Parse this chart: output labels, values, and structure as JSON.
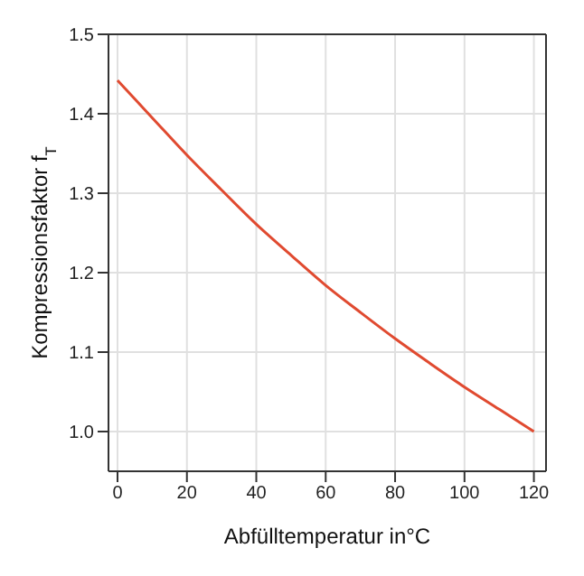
{
  "chart_data": {
    "type": "line",
    "xlabel": "Abfülltemperatur in°C",
    "ylabel": "Kompressionsfaktor f$_{T}$",
    "x": [
      0,
      10,
      20,
      30,
      40,
      50,
      60,
      70,
      80,
      90,
      100,
      110,
      120
    ],
    "series": [
      {
        "color": "#e04a30",
        "values": [
          1.442,
          1.395,
          1.348,
          1.304,
          1.261,
          1.222,
          1.184,
          1.15,
          1.117,
          1.086,
          1.056,
          1.028,
          1.0
        ]
      }
    ],
    "xlim": [
      -2.6,
      123.5
    ],
    "xticks": [
      0,
      20,
      40,
      60,
      80,
      100,
      120
    ],
    "ylim": [
      0.95,
      1.5
    ],
    "yticks": [
      {
        "value": 1.0,
        "label": "1.0"
      },
      {
        "value": 1.1,
        "label": "1.1"
      },
      {
        "value": 1.2,
        "label": "1.2"
      },
      {
        "value": 1.3,
        "label": "1.3"
      },
      {
        "value": 1.4,
        "label": "1.4"
      },
      {
        "value": 1.5,
        "label": "1.5"
      }
    ],
    "grid": true,
    "marker": "none",
    "line_style": "solid"
  }
}
